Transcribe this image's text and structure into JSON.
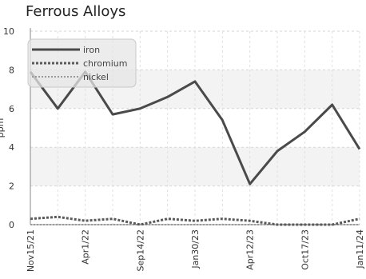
{
  "chart_data": {
    "type": "line",
    "title": "Ferrous Alloys",
    "ylabel": "ppm",
    "xlabel": "",
    "ylim": [
      0,
      10
    ],
    "yticks": [
      0,
      2,
      4,
      6,
      8,
      10
    ],
    "x": [
      "Nov15/21",
      "",
      "Apr1/22",
      "",
      "Sep14/22",
      "",
      "Jan30/23",
      "",
      "Apr12/23",
      "",
      "Oct17/23",
      "",
      "Jan11/24"
    ],
    "series": [
      {
        "name": "iron",
        "color": "#4a4a4a",
        "style": "solid",
        "values": [
          7.9,
          6.0,
          7.9,
          5.7,
          6.0,
          6.6,
          7.4,
          5.4,
          2.1,
          3.8,
          4.8,
          6.2,
          3.9
        ]
      },
      {
        "name": "chromium",
        "color": "#5a5a5a",
        "style": "dashed",
        "values": [
          0.3,
          0.4,
          0.2,
          0.3,
          0.0,
          0.3,
          0.2,
          0.3,
          0.2,
          0.0,
          0.0,
          0.0,
          0.3
        ]
      },
      {
        "name": "nickel",
        "color": "#9a9a9a",
        "style": "dotted",
        "values": [
          0.0,
          0.0,
          0.0,
          0.0,
          0.0,
          0.0,
          0.0,
          0.0,
          0.0,
          0.0,
          0.0,
          0.0,
          0.0
        ]
      }
    ],
    "legend_position": "top-left",
    "grid": true
  }
}
